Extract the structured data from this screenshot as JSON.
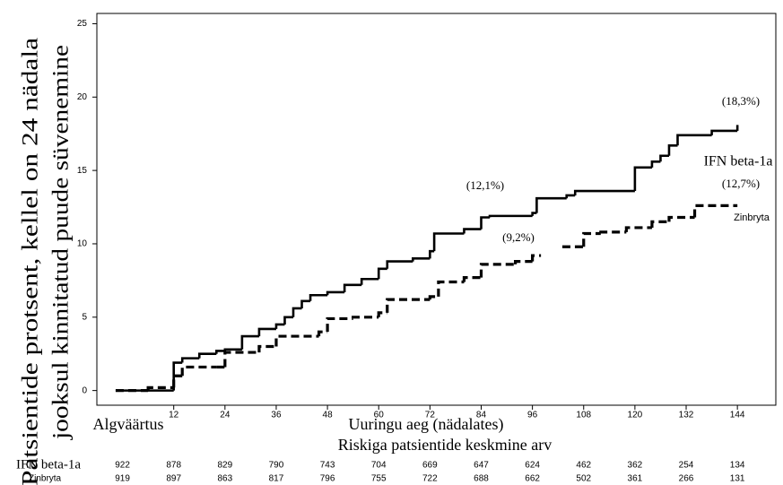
{
  "chart_data": {
    "type": "step",
    "y_label": [
      "Patsientide protsent, kellel on 24 nädala",
      "jooksul kinnitatud puude süvenemine"
    ],
    "x_label": "Uuringu aeg (nädalates)",
    "baseline_label": "Algväärtus",
    "xlim": [
      -6,
      153
    ],
    "ylim": [
      -1,
      25.7
    ],
    "xticks": [
      12,
      24,
      36,
      48,
      60,
      72,
      84,
      96,
      108,
      120,
      132,
      144
    ],
    "yticks": [
      0,
      5,
      10,
      15,
      20,
      25
    ],
    "series": [
      {
        "name": "IFN beta-1a",
        "color": "#000000",
        "dashed": false,
        "x": [
          -1.6,
          12,
          14,
          18,
          22,
          24,
          28,
          32,
          36,
          38,
          40,
          42,
          44,
          48,
          52,
          56,
          60,
          62,
          68,
          72,
          73,
          80,
          84,
          86,
          96,
          97,
          104,
          106,
          120,
          124,
          126,
          128,
          130,
          138,
          144
        ],
        "values": [
          0,
          1.9,
          2.2,
          2.5,
          2.7,
          2.8,
          3.7,
          4.2,
          4.5,
          5.0,
          5.6,
          6.1,
          6.5,
          6.7,
          7.2,
          7.6,
          8.3,
          8.8,
          9.0,
          9.5,
          10.7,
          11.0,
          11.8,
          11.9,
          12.1,
          13.1,
          13.3,
          13.6,
          15.2,
          15.6,
          16.0,
          16.7,
          17.4,
          17.7,
          18.1
        ]
      },
      {
        "name": "Zinbryta",
        "color": "#000000",
        "dashed": true,
        "x": [
          -1.6,
          6,
          12,
          14,
          22,
          24,
          32,
          36,
          46,
          48,
          54,
          60,
          62,
          72,
          74,
          80,
          84,
          92,
          96,
          98,
          103,
          108,
          112,
          118,
          124,
          128,
          134,
          144
        ],
        "values": [
          0,
          0.2,
          1.0,
          1.6,
          1.6,
          2.6,
          3.0,
          3.7,
          4.0,
          4.9,
          5.0,
          5.3,
          6.2,
          6.4,
          7.4,
          7.7,
          8.6,
          8.8,
          9.2,
          null,
          9.8,
          10.7,
          10.8,
          11.1,
          11.5,
          11.8,
          12.6,
          12.6
        ]
      }
    ],
    "annotations": [
      "(18,3%)",
      "(12,1%)",
      "(12,7%)",
      "(9,2%)"
    ],
    "risk_table": {
      "title": "Riskiga patsientide keskmine arv",
      "x": [
        0,
        12,
        24,
        36,
        48,
        60,
        72,
        84,
        96,
        108,
        120,
        132,
        144
      ],
      "rows": [
        [
          922,
          878,
          829,
          790,
          743,
          704,
          669,
          647,
          624,
          462,
          362,
          254,
          134
        ],
        [
          919,
          897,
          863,
          817,
          796,
          755,
          722,
          688,
          662,
          502,
          361,
          266,
          131
        ]
      ]
    }
  }
}
